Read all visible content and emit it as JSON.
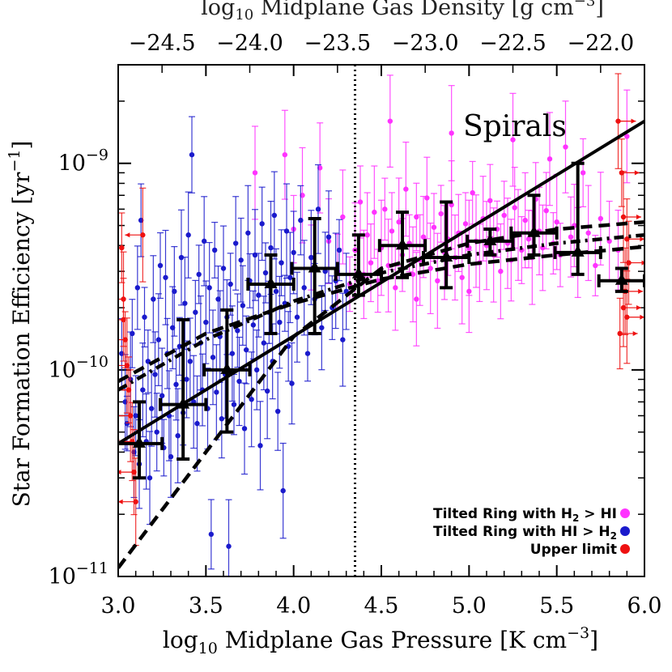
{
  "chart_data": {
    "type": "scatter",
    "xlabel": "log10 Midplane Gas Pressure [K cm-3]",
    "xlabel_parts": {
      "pre": "log",
      "sub": "10",
      "mid": " Midplane Gas Pressure [K cm",
      "sup": "−3",
      "post": "]"
    },
    "ylabel": "Star Formation Efficiency [yr-1]",
    "ylabel_parts": {
      "pre": "Star Formation Efficiency [yr",
      "sup": "−1",
      "post": "]"
    },
    "top_xlabel": "log10 Midplane Gas Density [g cm-3]",
    "top_xlabel_parts": {
      "pre": "log",
      "sub": "10",
      "mid": " Midplane Gas Density [g cm",
      "sup": "−3",
      "post": "]"
    },
    "xlim": [
      3.0,
      6.0
    ],
    "ylim": [
      1e-11,
      3e-09
    ],
    "y_scale": "log",
    "x_ticks": [
      "3.0",
      "3.5",
      "4.0",
      "4.5",
      "5.0",
      "5.5",
      "6.0"
    ],
    "x_tick_values": [
      3.0,
      3.5,
      4.0,
      4.5,
      5.0,
      5.5,
      6.0
    ],
    "top_ticks": [
      "−24.5",
      "−24.0",
      "−23.5",
      "−23.0",
      "−22.5",
      "−22.0"
    ],
    "top_tick_positions": [
      3.25,
      3.75,
      4.25,
      4.75,
      5.25,
      5.75
    ],
    "y_ticks": [
      {
        "value": 1e-11,
        "base": "10",
        "exp": "−11"
      },
      {
        "value": 1e-10,
        "base": "10",
        "exp": "−10"
      },
      {
        "value": 1e-09,
        "base": "10",
        "exp": "−9"
      }
    ],
    "annotation": "Spirals",
    "vline_x": 4.35,
    "legend": {
      "placement": "bottom-right",
      "entries": [
        {
          "pre": "Tilted Ring with H",
          "sub1": "2",
          "mid": " > HI",
          "sub2": "",
          "color": "#ff33ff"
        },
        {
          "pre": "Tilted Ring with HI > H",
          "sub1": "",
          "mid": "",
          "sub2": "2",
          "color": "#1a1acc"
        },
        {
          "pre": "Upper limit",
          "sub1": "",
          "mid": "",
          "sub2": "",
          "color": "#ee1111"
        }
      ]
    },
    "colors": {
      "h2": "#ff33ff",
      "hi": "#1a1acc",
      "upper": "#ee1111",
      "binned": "#000000"
    },
    "lines": [
      {
        "name": "",
        "style": "solid",
        "x": [
          3.0,
          6.0
        ],
        "y": [
          4.4e-11,
          1.6e-09
        ]
      },
      {
        "name": "",
        "style": "dashed",
        "x": [
          3.0,
          3.5,
          4.0,
          4.5,
          5.0,
          5.5,
          6.0
        ],
        "y": [
          1.1e-11,
          4e-11,
          1.45e-10,
          3.1e-10,
          4.1e-10,
          4.8e-10,
          5.2e-10
        ]
      },
      {
        "name": "",
        "style": "dashed",
        "x": [
          3.0,
          3.5,
          4.0,
          4.5,
          5.0,
          5.5,
          6.0
        ],
        "y": [
          8.8e-11,
          1.5e-10,
          2.1e-10,
          2.75e-10,
          3.25e-10,
          3.6e-10,
          3.95e-10
        ]
      },
      {
        "name": "",
        "style": "dashdot",
        "x": [
          3.0,
          3.5,
          4.0,
          4.5,
          5.0,
          5.5,
          6.0
        ],
        "y": [
          8e-11,
          1.4e-10,
          2.15e-10,
          2.95e-10,
          3.6e-10,
          4.1e-10,
          4.5e-10
        ]
      }
    ],
    "binned": [
      {
        "x": 3.12,
        "y": 4.4e-11,
        "xerr": 0.13,
        "ylo": 3e-11,
        "yhi": 7e-11
      },
      {
        "x": 3.37,
        "y": 6.8e-11,
        "xerr": 0.13,
        "ylo": 3.7e-11,
        "yhi": 1.75e-10
      },
      {
        "x": 3.62,
        "y": 1e-10,
        "xerr": 0.13,
        "ylo": 5e-11,
        "yhi": 1.95e-10
      },
      {
        "x": 3.87,
        "y": 2.6e-10,
        "xerr": 0.13,
        "ylo": 1.5e-10,
        "yhi": 3.6e-10
      },
      {
        "x": 4.12,
        "y": 3.1e-10,
        "xerr": 0.13,
        "ylo": 1.5e-10,
        "yhi": 5.4e-10
      },
      {
        "x": 4.37,
        "y": 2.9e-10,
        "xerr": 0.13,
        "ylo": 2.3e-10,
        "yhi": 4.5e-10
      },
      {
        "x": 4.62,
        "y": 4e-10,
        "xerr": 0.13,
        "ylo": 2.8e-10,
        "yhi": 5.8e-10
      },
      {
        "x": 4.87,
        "y": 3.5e-10,
        "xerr": 0.13,
        "ylo": 2.5e-10,
        "yhi": 6.5e-10
      },
      {
        "x": 5.12,
        "y": 4.2e-10,
        "xerr": 0.13,
        "ylo": 3.6e-10,
        "yhi": 4.8e-10
      },
      {
        "x": 5.37,
        "y": 4.6e-10,
        "xerr": 0.13,
        "ylo": 3.6e-10,
        "yhi": 7e-10
      },
      {
        "x": 5.62,
        "y": 3.7e-10,
        "xerr": 0.13,
        "ylo": 2.9e-10,
        "yhi": 1e-09
      },
      {
        "x": 5.87,
        "y": 2.7e-10,
        "xerr": 0.13,
        "ylo": 2.4e-10,
        "yhi": 3.1e-10
      }
    ],
    "hi_points": [
      [
        3.02,
        1.2e-10
      ],
      [
        3.04,
        7e-11
      ],
      [
        3.05,
        5.5e-11
      ],
      [
        3.07,
        9e-11
      ],
      [
        3.08,
        1.5e-10
      ],
      [
        3.09,
        4e-11
      ],
      [
        3.1,
        6e-11
      ],
      [
        3.11,
        2.5e-10
      ],
      [
        3.12,
        3.5e-11
      ],
      [
        3.13,
        5.3e-10
      ],
      [
        3.14,
        8e-11
      ],
      [
        3.15,
        1.8e-10
      ],
      [
        3.16,
        4.5e-11
      ],
      [
        3.17,
        1.1e-10
      ],
      [
        3.18,
        3e-11
      ],
      [
        3.19,
        6.5e-11
      ],
      [
        3.2,
        2.2e-10
      ],
      [
        3.21,
        9.5e-11
      ],
      [
        3.22,
        5e-11
      ],
      [
        3.23,
        1.4e-10
      ],
      [
        3.24,
        3.2e-10
      ],
      [
        3.25,
        7.5e-11
      ],
      [
        3.26,
        4.2e-11
      ],
      [
        3.27,
        2.8e-10
      ],
      [
        3.28,
        1.2e-10
      ],
      [
        3.29,
        6e-11
      ],
      [
        3.3,
        3.8e-11
      ],
      [
        3.31,
        1.6e-10
      ],
      [
        3.32,
        2.4e-10
      ],
      [
        3.33,
        8.5e-11
      ],
      [
        3.34,
        4.8e-11
      ],
      [
        3.35,
        1.3e-10
      ],
      [
        3.36,
        3.5e-10
      ],
      [
        3.37,
        6.2e-11
      ],
      [
        3.38,
        2.1e-10
      ],
      [
        3.39,
        9e-11
      ],
      [
        3.4,
        4.5e-10
      ],
      [
        3.41,
        1.1e-10
      ],
      [
        3.42,
        1.1e-09
      ],
      [
        3.43,
        7e-11
      ],
      [
        3.44,
        1.9e-10
      ],
      [
        3.45,
        5.5e-11
      ],
      [
        3.46,
        2.9e-10
      ],
      [
        3.47,
        1.35e-10
      ],
      [
        3.48,
        8e-11
      ],
      [
        3.49,
        4.2e-10
      ],
      [
        3.5,
        1.7e-10
      ],
      [
        3.51,
        6.5e-11
      ],
      [
        3.52,
        2.5e-10
      ],
      [
        3.53,
        1.6e-11
      ],
      [
        3.54,
        1.15e-10
      ],
      [
        3.55,
        3.8e-10
      ],
      [
        3.56,
        7.8e-11
      ],
      [
        3.57,
        2.2e-10
      ],
      [
        3.58,
        1.45e-10
      ],
      [
        3.59,
        5.8e-11
      ],
      [
        3.6,
        3.1e-10
      ],
      [
        3.61,
        9.5e-11
      ],
      [
        3.62,
        1.8e-10
      ],
      [
        3.63,
        1.4e-11
      ],
      [
        3.64,
        2.6e-10
      ],
      [
        3.65,
        1.2e-10
      ],
      [
        3.66,
        6.8e-11
      ],
      [
        3.67,
        4.1e-10
      ],
      [
        3.68,
        1.55e-10
      ],
      [
        3.69,
        8.8e-11
      ],
      [
        3.7,
        3.4e-10
      ],
      [
        3.71,
        2.05e-10
      ],
      [
        3.72,
        5.2e-11
      ],
      [
        3.73,
        1.25e-10
      ],
      [
        3.74,
        4.6e-10
      ],
      [
        3.75,
        2.7e-10
      ],
      [
        3.76,
        7.2e-11
      ],
      [
        3.77,
        1.65e-10
      ],
      [
        3.78,
        3.6e-10
      ],
      [
        3.79,
        1e-10
      ],
      [
        3.8,
        2.3e-10
      ],
      [
        3.81,
        4.3e-11
      ],
      [
        3.82,
        5.1e-10
      ],
      [
        3.83,
        1.35e-10
      ],
      [
        3.84,
        2.95e-10
      ],
      [
        3.85,
        7.9e-11
      ],
      [
        3.86,
        1.9e-10
      ],
      [
        3.87,
        3.9e-10
      ],
      [
        3.88,
        1.1e-10
      ],
      [
        3.89,
        5.6e-10
      ],
      [
        3.9,
        2.4e-10
      ],
      [
        3.91,
        6.3e-11
      ],
      [
        3.92,
        1.7e-10
      ],
      [
        3.93,
        3.3e-10
      ],
      [
        3.94,
        2.6e-11
      ],
      [
        3.95,
        2.1e-10
      ],
      [
        3.96,
        4.7e-10
      ],
      [
        3.97,
        1.3e-10
      ],
      [
        3.98,
        2.8e-10
      ],
      [
        3.99,
        8.6e-11
      ],
      [
        4.0,
        3.7e-10
      ],
      [
        4.02,
        1.8e-10
      ],
      [
        4.04,
        5.3e-10
      ],
      [
        4.06,
        2.5e-10
      ],
      [
        4.08,
        1.2e-10
      ],
      [
        4.1,
        3.5e-10
      ],
      [
        4.12,
        2.2e-10
      ],
      [
        4.14,
        6e-10
      ],
      [
        4.16,
        1.6e-10
      ],
      [
        4.18,
        3e-10
      ],
      [
        4.2,
        4.4e-10
      ],
      [
        4.22,
        2e-10
      ],
      [
        4.24,
        2.7e-10
      ],
      [
        4.26,
        3.8e-10
      ],
      [
        4.28,
        1.4e-10
      ],
      [
        4.3,
        2.4e-10
      ]
    ],
    "h2_points": [
      [
        3.78,
        9e-10
      ],
      [
        3.95,
        1.1e-09
      ],
      [
        4.0,
        4.8e-10
      ],
      [
        4.05,
        7e-10
      ],
      [
        4.1,
        3.5e-10
      ],
      [
        4.15,
        9.5e-10
      ],
      [
        4.2,
        4.2e-10
      ],
      [
        4.25,
        3e-10
      ],
      [
        4.28,
        5.5e-10
      ],
      [
        4.32,
        2.6e-10
      ],
      [
        4.35,
        3.8e-10
      ],
      [
        4.38,
        6.5e-10
      ],
      [
        4.4,
        2.9e-10
      ],
      [
        4.42,
        4.5e-10
      ],
      [
        4.44,
        3.3e-10
      ],
      [
        4.46,
        5.8e-10
      ],
      [
        4.48,
        2.7e-10
      ],
      [
        4.5,
        3.9e-10
      ],
      [
        4.52,
        6e-10
      ],
      [
        4.54,
        3.2e-10
      ],
      [
        4.56,
        4.7e-10
      ],
      [
        4.58,
        2.5e-10
      ],
      [
        4.6,
        5.2e-10
      ],
      [
        4.62,
        3.6e-10
      ],
      [
        4.64,
        7.5e-10
      ],
      [
        4.66,
        4.1e-10
      ],
      [
        4.68,
        2.9e-10
      ],
      [
        4.7,
        5.5e-10
      ],
      [
        4.72,
        3.4e-10
      ],
      [
        4.74,
        4.4e-10
      ],
      [
        4.76,
        6.8e-10
      ],
      [
        4.78,
        3.1e-10
      ],
      [
        4.8,
        4.9e-10
      ],
      [
        4.82,
        2.7e-10
      ],
      [
        4.84,
        5.7e-10
      ],
      [
        4.86,
        3.7e-10
      ],
      [
        4.88,
        4.3e-10
      ],
      [
        4.9,
        6.3e-10
      ],
      [
        4.92,
        3.5e-10
      ],
      [
        4.94,
        4.6e-10
      ],
      [
        4.96,
        2.8e-10
      ],
      [
        4.98,
        5.1e-10
      ],
      [
        5.0,
        3.9e-10
      ],
      [
        5.02,
        7.2e-10
      ],
      [
        5.04,
        4.2e-10
      ],
      [
        5.06,
        3.3e-10
      ],
      [
        5.08,
        5.4e-10
      ],
      [
        5.1,
        4e-10
      ],
      [
        5.12,
        6.6e-10
      ],
      [
        5.14,
        3.6e-10
      ],
      [
        5.16,
        4.8e-10
      ],
      [
        5.18,
        3e-10
      ],
      [
        5.2,
        5.6e-10
      ],
      [
        5.22,
        4.1e-10
      ],
      [
        5.24,
        3.4e-10
      ],
      [
        5.26,
        6.1e-10
      ],
      [
        5.28,
        4.5e-10
      ],
      [
        5.3,
        3.8e-10
      ],
      [
        5.32,
        5.3e-10
      ],
      [
        5.34,
        4.3e-10
      ],
      [
        5.36,
        3.5e-10
      ],
      [
        5.38,
        6.7e-10
      ],
      [
        5.4,
        4.7e-10
      ],
      [
        5.42,
        3.9e-10
      ],
      [
        5.44,
        5.9e-10
      ],
      [
        5.46,
        1.05e-09
      ],
      [
        5.48,
        4.1e-10
      ],
      [
        5.5,
        5.2e-10
      ],
      [
        5.52,
        3.6e-10
      ],
      [
        5.55,
        1.2e-09
      ],
      [
        5.58,
        4.4e-10
      ],
      [
        5.6,
        5e-10
      ],
      [
        5.62,
        3.7e-10
      ],
      [
        5.65,
        9e-10
      ],
      [
        5.68,
        4.6e-10
      ],
      [
        5.72,
        3.2e-10
      ],
      [
        5.75,
        5.4e-10
      ],
      [
        5.8,
        4.2e-10
      ],
      [
        5.85,
        3.8e-10
      ],
      [
        5.9,
        1.35e-09
      ],
      [
        4.55,
        1.6e-09
      ],
      [
        4.9,
        1.4e-09
      ],
      [
        5.25,
        1.3e-09
      ],
      [
        4.7,
        2.2e-10
      ],
      [
        5.0,
        2.4e-10
      ]
    ],
    "upper_points": [
      [
        3.02,
        3.9e-10
      ],
      [
        3.03,
        2.2e-10
      ],
      [
        3.04,
        1.4e-10
      ],
      [
        3.05,
        1.05e-10
      ],
      [
        3.06,
        8e-11
      ],
      [
        3.07,
        6e-11
      ],
      [
        3.08,
        4.5e-11
      ],
      [
        3.09,
        3.2e-11
      ],
      [
        3.1,
        2.3e-11
      ],
      [
        3.03,
        1.75e-10
      ],
      [
        3.14,
        4.5e-10
      ],
      [
        5.85,
        1.6e-09
      ],
      [
        5.87,
        9e-10
      ],
      [
        5.88,
        5.5e-10
      ],
      [
        5.9,
        4.3e-10
      ],
      [
        5.91,
        3.3e-10
      ],
      [
        5.89,
        2.4e-10
      ],
      [
        5.88,
        2e-10
      ],
      [
        5.9,
        1.8e-10
      ],
      [
        5.86,
        1.5e-10
      ]
    ]
  }
}
